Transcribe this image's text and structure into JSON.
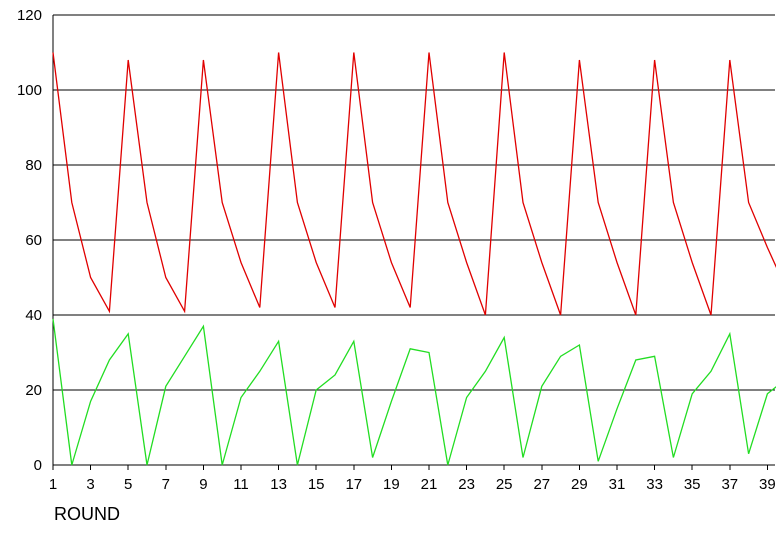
{
  "chart_data": {
    "type": "line",
    "title": "",
    "xlabel": "ROUND",
    "ylabel": "",
    "ylim": [
      0,
      120
    ],
    "yticks": [
      0,
      20,
      40,
      60,
      80,
      100,
      120
    ],
    "xticks": [
      1,
      3,
      5,
      7,
      9,
      11,
      13,
      15,
      17,
      19,
      21,
      23,
      25,
      27,
      29,
      31,
      33,
      35,
      37,
      39
    ],
    "xlim": [
      1,
      40
    ],
    "grid": "horizontal",
    "x": [
      1,
      2,
      3,
      4,
      5,
      6,
      7,
      8,
      9,
      10,
      11,
      12,
      13,
      14,
      15,
      16,
      17,
      18,
      19,
      20,
      21,
      22,
      23,
      24,
      25,
      26,
      27,
      28,
      29,
      30,
      31,
      32,
      33,
      34,
      35,
      36,
      37,
      38,
      39,
      40
    ],
    "series": [
      {
        "color": "#e00000",
        "values": [
          110,
          70,
          50,
          41,
          108,
          70,
          50,
          41,
          108,
          70,
          54,
          42,
          110,
          70,
          54,
          42,
          110,
          70,
          54,
          42,
          110,
          70,
          54,
          40,
          110,
          70,
          54,
          40,
          108,
          70,
          54,
          40,
          108,
          70,
          54,
          40,
          108,
          70,
          58,
          47
        ]
      },
      {
        "color": "#22dd22",
        "values": [
          39,
          0,
          17,
          28,
          35,
          0,
          21,
          29,
          37,
          0,
          18,
          25,
          33,
          0,
          20,
          24,
          33,
          2,
          17,
          31,
          30,
          0,
          18,
          25,
          34,
          2,
          21,
          29,
          32,
          1,
          15,
          28,
          29,
          2,
          19,
          25,
          35,
          3,
          19,
          23
        ]
      }
    ]
  }
}
